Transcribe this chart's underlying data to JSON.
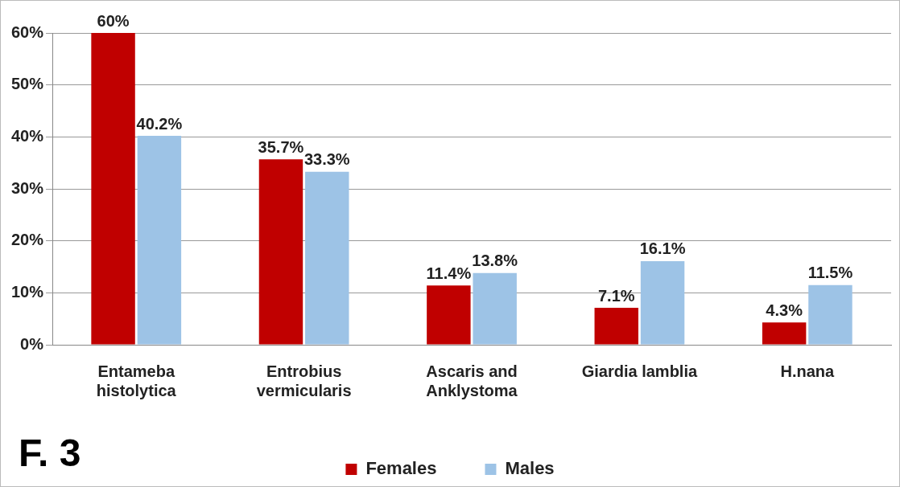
{
  "chart_data": {
    "type": "bar",
    "categories": [
      "Entameba\nhistolytica",
      "Entrobius\nvermicularis",
      "Ascaris and\nAnklystoma",
      "Giardia lamblia",
      "H.nana"
    ],
    "series": [
      {
        "name": "Females",
        "color": "#c00000",
        "values": [
          60,
          35.7,
          11.4,
          7.1,
          4.3
        ],
        "value_labels": [
          "60%",
          "35.7%",
          "11.4%",
          "7.1%",
          "4.3%"
        ]
      },
      {
        "name": "Males",
        "color": "#9dc3e6",
        "values": [
          40.2,
          33.3,
          13.8,
          16.1,
          11.5
        ],
        "value_labels": [
          "40.2%",
          "33.3%",
          "13.8%",
          "16.1%",
          "11.5%"
        ]
      }
    ],
    "ylim": [
      0,
      60
    ],
    "yticks": [
      {
        "value": 0,
        "label": "0%"
      },
      {
        "value": 10,
        "label": "10%"
      },
      {
        "value": 20,
        "label": "20%"
      },
      {
        "value": 30,
        "label": "30%"
      },
      {
        "value": 40,
        "label": "40%"
      },
      {
        "value": 50,
        "label": "50%"
      },
      {
        "value": 60,
        "label": "60%"
      }
    ],
    "grid": "y",
    "legend": "bottom",
    "annotations": [
      "F. 3"
    ]
  }
}
